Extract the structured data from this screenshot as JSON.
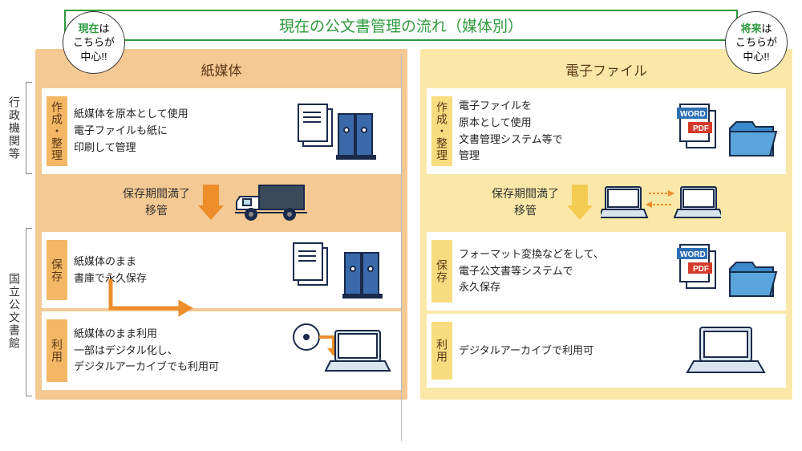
{
  "title": "現在の公文書管理の流れ（媒体別）",
  "bubbles": {
    "left": {
      "line1": "現在",
      "line2": "は",
      "line3": "こちらが",
      "line4": "中心!!"
    },
    "right": {
      "line1": "将来",
      "line2": "は",
      "line3": "こちらが",
      "line4": "中心!!"
    }
  },
  "rowLabels": {
    "org": "行政機関等",
    "archive": "国立公文書館"
  },
  "panels": {
    "left": {
      "title": "紙媒体",
      "color": "#f5c993",
      "accent": "#f3b765",
      "arrow": "#ed8e2b",
      "stage1": {
        "label": "作成・整理",
        "text": "紙媒体を原本として使用\n電子ファイルも紙に\n印刷して管理"
      },
      "transition": {
        "text": "保存期間満了\n移管"
      },
      "stage2": {
        "label": "保存",
        "text": "紙媒体のまま\n書庫で永久保存"
      },
      "stage3": {
        "label": "利用",
        "text": "紙媒体のまま利用\n一部はデジタル化し、\nデジタルアーカイブでも利用可"
      }
    },
    "right": {
      "title": "電子ファイル",
      "color": "#fbe8a8",
      "accent": "#f8dd80",
      "arrow": "#f4cc52",
      "stage1": {
        "label": "作成・整理",
        "text": "電子ファイルを\n原本として使用\n文書管理システム等で\n管理"
      },
      "transition": {
        "text": "保存期間満了\n移管"
      },
      "stage2": {
        "label": "保存",
        "text": "フォーマット変換などをして、\n電子公文書等システムで\n永久保存"
      },
      "stage3": {
        "label": "利用",
        "text": "デジタルアーカイブで利用可"
      }
    }
  },
  "icons": {
    "word": "WORD",
    "pdf": "PDF"
  }
}
